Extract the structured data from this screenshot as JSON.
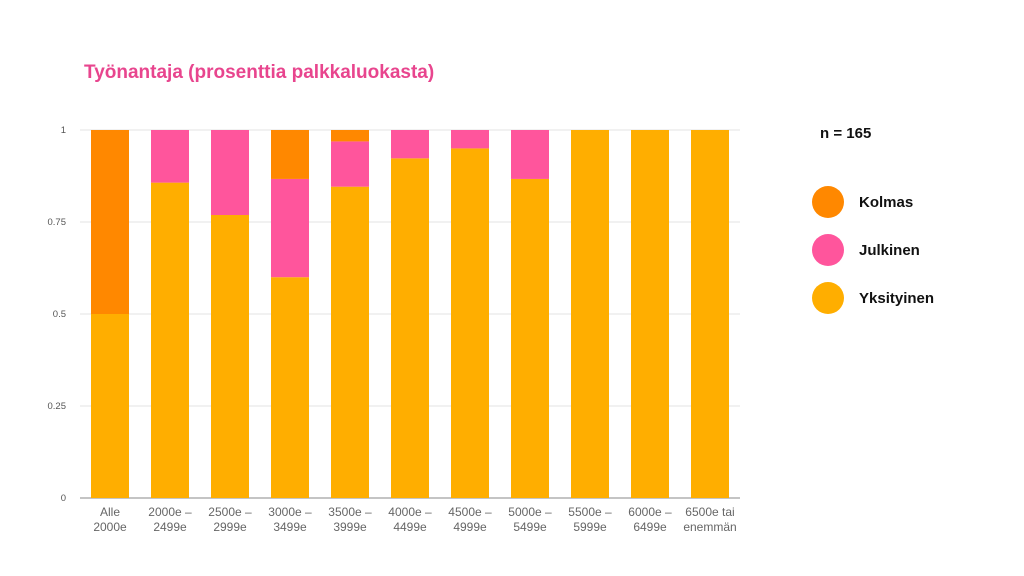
{
  "chart_data": {
    "type": "bar",
    "stacked": true,
    "title": "Työnantaja (prosenttia palkkaluokasta)",
    "note": "n = 165",
    "categories": [
      [
        "Alle",
        "2000e"
      ],
      [
        "2000e –",
        "2499e"
      ],
      [
        "2500e –",
        "2999e"
      ],
      [
        "3000e –",
        "3499e"
      ],
      [
        "3500e –",
        "3999e"
      ],
      [
        "4000e –",
        "4499e"
      ],
      [
        "4500e –",
        "4999e"
      ],
      [
        "5000e –",
        "5499e"
      ],
      [
        "5500e –",
        "5999e"
      ],
      [
        "6000e –",
        "6499e"
      ],
      [
        "6500e tai",
        "enemmän"
      ]
    ],
    "series": [
      {
        "name": "Yksityinen",
        "color": "#ffae00",
        "values": [
          0.5,
          0.857,
          0.769,
          0.6,
          0.846,
          0.923,
          0.95,
          0.867,
          1,
          1,
          1
        ]
      },
      {
        "name": "Julkinen",
        "color": "#ff559c",
        "values": [
          0,
          0.143,
          0.231,
          0.267,
          0.123,
          0.077,
          0.05,
          0.133,
          0,
          0,
          0
        ]
      },
      {
        "name": "Kolmas",
        "color": "#ff8800",
        "values": [
          0.5,
          0,
          0,
          0.133,
          0.031,
          0,
          0,
          0,
          0,
          0,
          0
        ]
      }
    ],
    "ylim": [
      0,
      1
    ],
    "yticks": [
      "0",
      "0.25",
      "0.5",
      "0.75",
      "1"
    ],
    "grid": true,
    "legend_position": "right"
  },
  "legend_order": [
    "Kolmas",
    "Julkinen",
    "Yksityinen"
  ]
}
